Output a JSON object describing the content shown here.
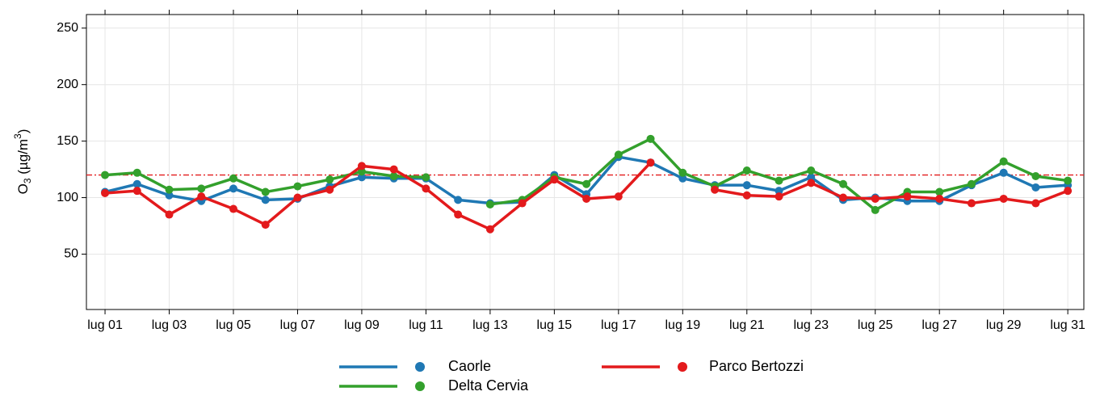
{
  "chart_data": {
    "type": "line",
    "y_label": {
      "main": "O",
      "sub": "3",
      "mid": " (µg/m",
      "sup": "3",
      "end": ")"
    },
    "categories": [
      "lug 01",
      null,
      "lug 03",
      null,
      "lug 05",
      null,
      "lug 07",
      null,
      "lug 09",
      null,
      "lug 11",
      null,
      "lug 13",
      null,
      "lug 15",
      null,
      "lug 17",
      null,
      "lug 19",
      null,
      "lug 21",
      null,
      "lug 23",
      null,
      "lug 25",
      null,
      "lug 27",
      null,
      "lug 29",
      null,
      "lug 31"
    ],
    "series": [
      {
        "name": "Caorle",
        "color": "#1f78b4",
        "values": [
          105,
          112,
          102,
          97,
          108,
          98,
          99,
          110,
          118,
          117,
          117,
          98,
          95,
          96,
          120,
          103,
          136,
          131,
          117,
          111,
          111,
          106,
          118,
          98,
          100,
          97,
          97,
          111,
          122,
          109,
          111
        ]
      },
      {
        "name": "Delta Cervia",
        "color": "#33a02c",
        "values": [
          120,
          122,
          107,
          108,
          117,
          105,
          110,
          116,
          123,
          119,
          118,
          null,
          94,
          98,
          118,
          112,
          138,
          152,
          122,
          110,
          124,
          115,
          124,
          112,
          89,
          105,
          105,
          112,
          132,
          119,
          115
        ]
      },
      {
        "name": "Parco Bertozzi",
        "color": "#e31a1c",
        "values": [
          104,
          106,
          85,
          101,
          90,
          76,
          100,
          107,
          128,
          125,
          108,
          85,
          72,
          95,
          116,
          99,
          101,
          131,
          null,
          107,
          102,
          101,
          113,
          100,
          99,
          101,
          99,
          95,
          99,
          95,
          106
        ]
      }
    ],
    "threshold": 120,
    "threshold_color": "#e31a1c",
    "ylim": [
      1,
      262
    ],
    "yticks": [
      50,
      100,
      150,
      200,
      250
    ],
    "grid": true
  }
}
